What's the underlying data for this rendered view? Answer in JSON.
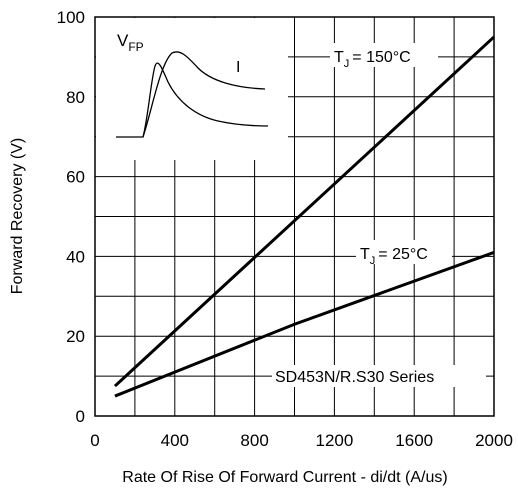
{
  "chart_data": {
    "type": "line",
    "xlabel": "Rate Of Rise Of Forward Current - di/dt (A/us)",
    "ylabel": "Forward Recovery (V)",
    "xlim": [
      0,
      2000
    ],
    "ylim": [
      0,
      100
    ],
    "xticks": [
      0,
      400,
      800,
      1200,
      1600,
      2000
    ],
    "yticks": [
      0,
      20,
      40,
      60,
      80,
      100
    ],
    "x_grid_step": 200,
    "y_grid_step": 10,
    "grid": true,
    "series": [
      {
        "name": "TJ = 150°C",
        "label_main": "T",
        "label_sub": "J",
        "label_rest": "= 150°C",
        "x": [
          100,
          2000
        ],
        "y": [
          7.5,
          95
        ]
      },
      {
        "name": "TJ = 25°C",
        "label_main": "T",
        "label_sub": "J",
        "label_rest": "= 25°C",
        "x": [
          100,
          1000,
          2000
        ],
        "y": [
          5,
          23,
          41
        ]
      }
    ],
    "annotation": "SD453N/R.S30 Series",
    "inset": {
      "vfp_main": "V",
      "vfp_sub": "FP",
      "i_label": "I"
    }
  }
}
